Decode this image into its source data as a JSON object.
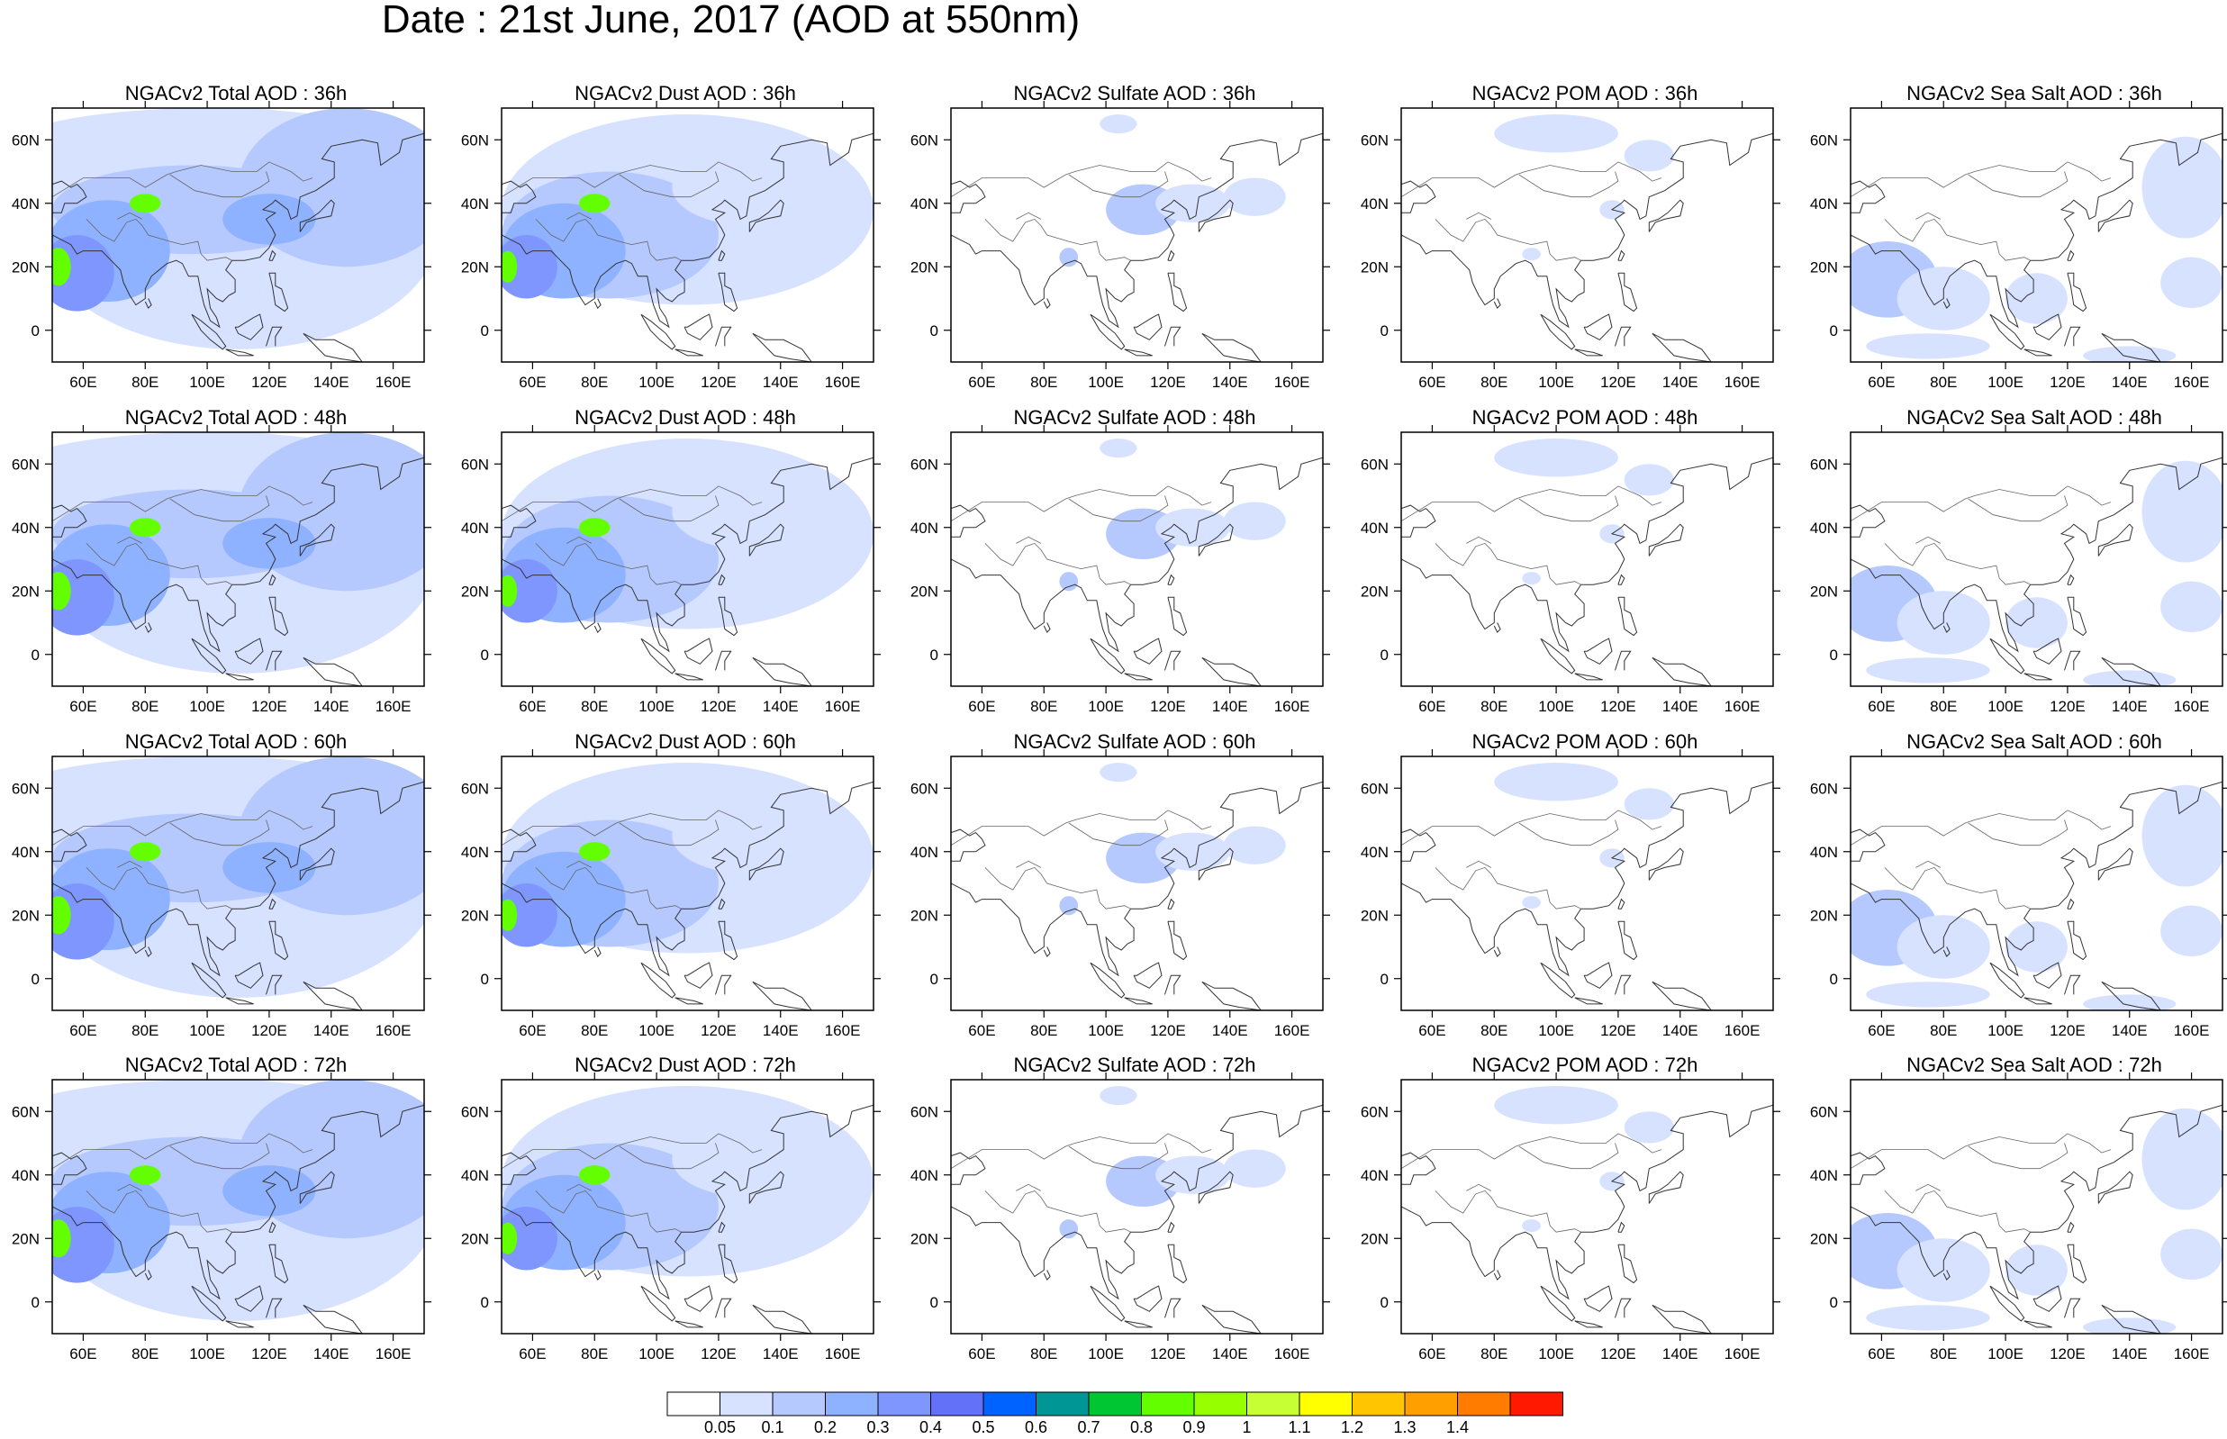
{
  "title": "Date : 21st June, 2017 (AOD at 550nm)",
  "panels": [
    {
      "title": "NGACv2 Total AOD : 36h"
    },
    {
      "title": "NGACv2 Dust AOD : 36h"
    },
    {
      "title": "NGACv2 Sulfate AOD : 36h"
    },
    {
      "title": "NGACv2 POM AOD : 36h"
    },
    {
      "title": "NGACv2 Sea Salt AOD : 36h"
    },
    {
      "title": "NGACv2 Total AOD : 48h"
    },
    {
      "title": "NGACv2 Dust AOD : 48h"
    },
    {
      "title": "NGACv2 Sulfate AOD : 48h"
    },
    {
      "title": "NGACv2 POM AOD : 48h"
    },
    {
      "title": "NGACv2 Sea Salt AOD : 48h"
    },
    {
      "title": "NGACv2 Total AOD : 60h"
    },
    {
      "title": "NGACv2 Dust AOD : 60h"
    },
    {
      "title": "NGACv2 Sulfate AOD : 60h"
    },
    {
      "title": "NGACv2 POM AOD : 60h"
    },
    {
      "title": "NGACv2 Sea Salt AOD : 60h"
    },
    {
      "title": "NGACv2 Total AOD : 72h"
    },
    {
      "title": "NGACv2 Dust AOD : 72h"
    },
    {
      "title": "NGACv2 Sulfate AOD : 72h"
    },
    {
      "title": "NGACv2 POM AOD : 72h"
    },
    {
      "title": "NGACv2 Sea Salt  AOD : 72h"
    }
  ],
  "map_axes": {
    "lon_ticks": [
      "60E",
      "80E",
      "100E",
      "120E",
      "140E",
      "160E"
    ],
    "lat_ticks": [
      "60N",
      "40N",
      "20N",
      "0"
    ]
  },
  "colorbar": {
    "labels": [
      "0.05",
      "0.1",
      "0.2",
      "0.3",
      "0.4",
      "0.5",
      "0.6",
      "0.7",
      "0.8",
      "0.9",
      "1",
      "1.1",
      "1.2",
      "1.3",
      "1.4"
    ],
    "colors": [
      "#ffffff",
      "#d6e2ff",
      "#b5c9ff",
      "#8eb2ff",
      "#7f96ff",
      "#6370f8",
      "#0063ff",
      "#009696",
      "#00c633",
      "#63ff00",
      "#96ff00",
      "#c6ff33",
      "#ffff00",
      "#ffc600",
      "#ffa000",
      "#ff7c00",
      "#ff1900"
    ]
  }
}
